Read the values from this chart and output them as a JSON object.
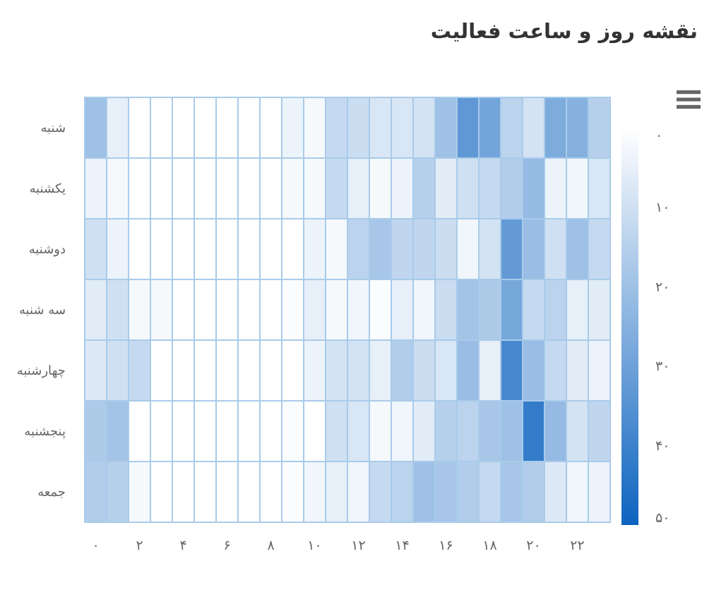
{
  "chart_data": {
    "type": "heatmap",
    "title": "نقشه روز و ساعت فعالیت",
    "categories": [
      "۰",
      null,
      "۲",
      null,
      "۴",
      null,
      "۶",
      null,
      "۸",
      null,
      "۱۰",
      null,
      "۱۲",
      null,
      "۱۴",
      null,
      "۱۶",
      null,
      "۱۸",
      null,
      "۲۰",
      null,
      "۲۲",
      null
    ],
    "y_categories": [
      "شنبه",
      "یکشنبه",
      "دوشنبه",
      "سه شنبه",
      "چهارشنبه",
      "پنجشنبه",
      "جمعه"
    ],
    "cells": [
      [
        20,
        5,
        0,
        0,
        0,
        0,
        0,
        0,
        0,
        4,
        2,
        12,
        11,
        8,
        8,
        9,
        20,
        33,
        29,
        14,
        9,
        27,
        25,
        15
      ],
      [
        4,
        2,
        0,
        0,
        0,
        0,
        0,
        0,
        0,
        2,
        2,
        12,
        5,
        2,
        4,
        15,
        6,
        10,
        12,
        16,
        22,
        4,
        3,
        8
      ],
      [
        10,
        4,
        0,
        0,
        0,
        0,
        0,
        0,
        0,
        0,
        4,
        2,
        14,
        18,
        13,
        13,
        11,
        3,
        9,
        32,
        21,
        10,
        20,
        12
      ],
      [
        6,
        10,
        2,
        2,
        0,
        0,
        0,
        0,
        0,
        1,
        5,
        2,
        3,
        1,
        5,
        3,
        11,
        19,
        17,
        28,
        12,
        14,
        5,
        6
      ],
      [
        7,
        10,
        12,
        0,
        0,
        0,
        0,
        0,
        0,
        0,
        4,
        9,
        9,
        5,
        16,
        11,
        8,
        21,
        5,
        38,
        21,
        12,
        6,
        4
      ],
      [
        17,
        19,
        0,
        0,
        0,
        0,
        0,
        0,
        0,
        1,
        0,
        10,
        8,
        2,
        3,
        6,
        15,
        14,
        18,
        20,
        42,
        22,
        9,
        13
      ],
      [
        16,
        15,
        2,
        0,
        0,
        0,
        0,
        0,
        0,
        1,
        3,
        5,
        3,
        12,
        14,
        20,
        18,
        16,
        12,
        18,
        16,
        7,
        3,
        4
      ]
    ],
    "clim": [
      0,
      50
    ],
    "cticks": [
      {
        "value": 0,
        "label": "۰"
      },
      {
        "value": 10,
        "label": "۱۰"
      },
      {
        "value": 20,
        "label": "۲۰"
      },
      {
        "value": 30,
        "label": "۳۰"
      },
      {
        "value": 40,
        "label": "۴۰"
      },
      {
        "value": 50,
        "label": "۵۰"
      }
    ]
  }
}
